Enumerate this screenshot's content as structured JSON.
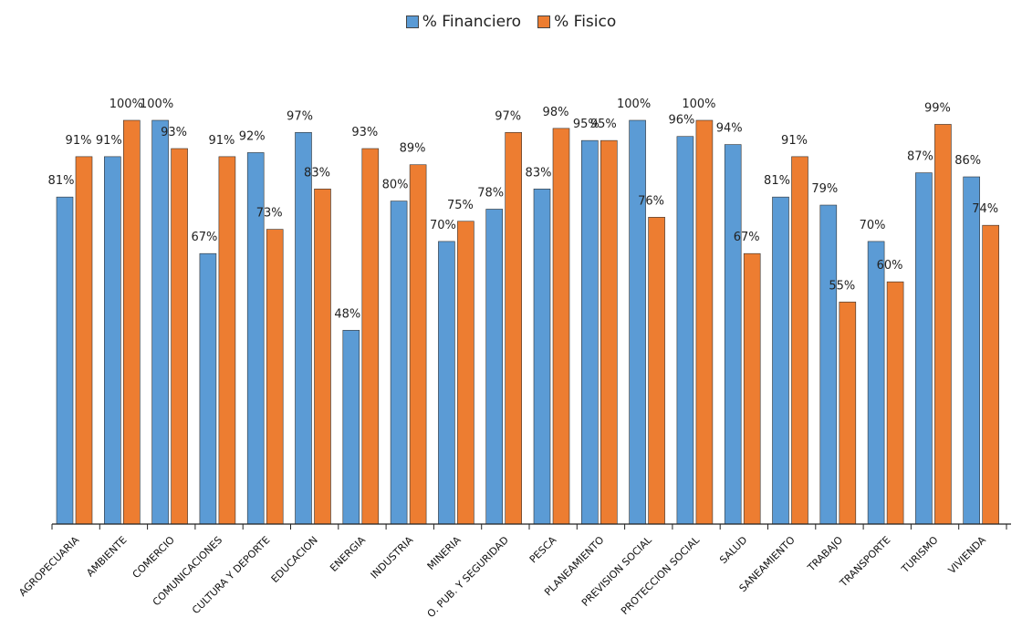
{
  "chart_data": {
    "type": "bar",
    "categories": [
      "AGROPECUARIA",
      "AMBIENTE",
      "COMERCIO",
      "COMUNICACIONES",
      "CULTURA Y DEPORTE",
      "EDUCACION",
      "ENERGIA",
      "INDUSTRIA",
      "MINERIA",
      "O. PUB. Y SEGURIDAD",
      "PESCA",
      "PLANEAMIENTO",
      "PREVISION SOCIAL",
      "PROTECCION SOCIAL",
      "SALUD",
      "SANEAMIENTO",
      "TRABAJO",
      "TRANSPORTE",
      "TURISMO",
      "VIVIENDA"
    ],
    "series": [
      {
        "name": "% Financiero",
        "color": "#5B9BD5",
        "values": [
          81,
          91,
          100,
          67,
          92,
          97,
          48,
          80,
          70,
          78,
          83,
          95,
          100,
          96,
          94,
          81,
          79,
          70,
          87,
          86
        ],
        "labels": [
          "81%",
          "91%",
          "100%",
          "67%",
          "92%",
          "97%",
          "48%",
          "80%",
          "70%",
          "78%",
          "83%",
          "95%",
          "100%",
          "96%",
          "94%",
          "81%",
          "79%",
          "70%",
          "87%",
          "86%"
        ]
      },
      {
        "name": "% Fisico",
        "color": "#ED7D31",
        "values": [
          91,
          100,
          93,
          91,
          73,
          83,
          93,
          89,
          75,
          97,
          98,
          95,
          76,
          100,
          67,
          91,
          55,
          60,
          99,
          74
        ],
        "labels": [
          "91%",
          "100%",
          "93%",
          "91%",
          "73%",
          "83%",
          "93%",
          "89%",
          "75%",
          "97%",
          "98%",
          "95%",
          "76%",
          "100%",
          "67%",
          "91%",
          "55%",
          "60%",
          "99%",
          "74%"
        ]
      }
    ],
    "ylim": [
      0,
      100
    ],
    "grid": false,
    "legend_position": "top-center",
    "title": "",
    "xlabel": "",
    "ylabel": ""
  }
}
